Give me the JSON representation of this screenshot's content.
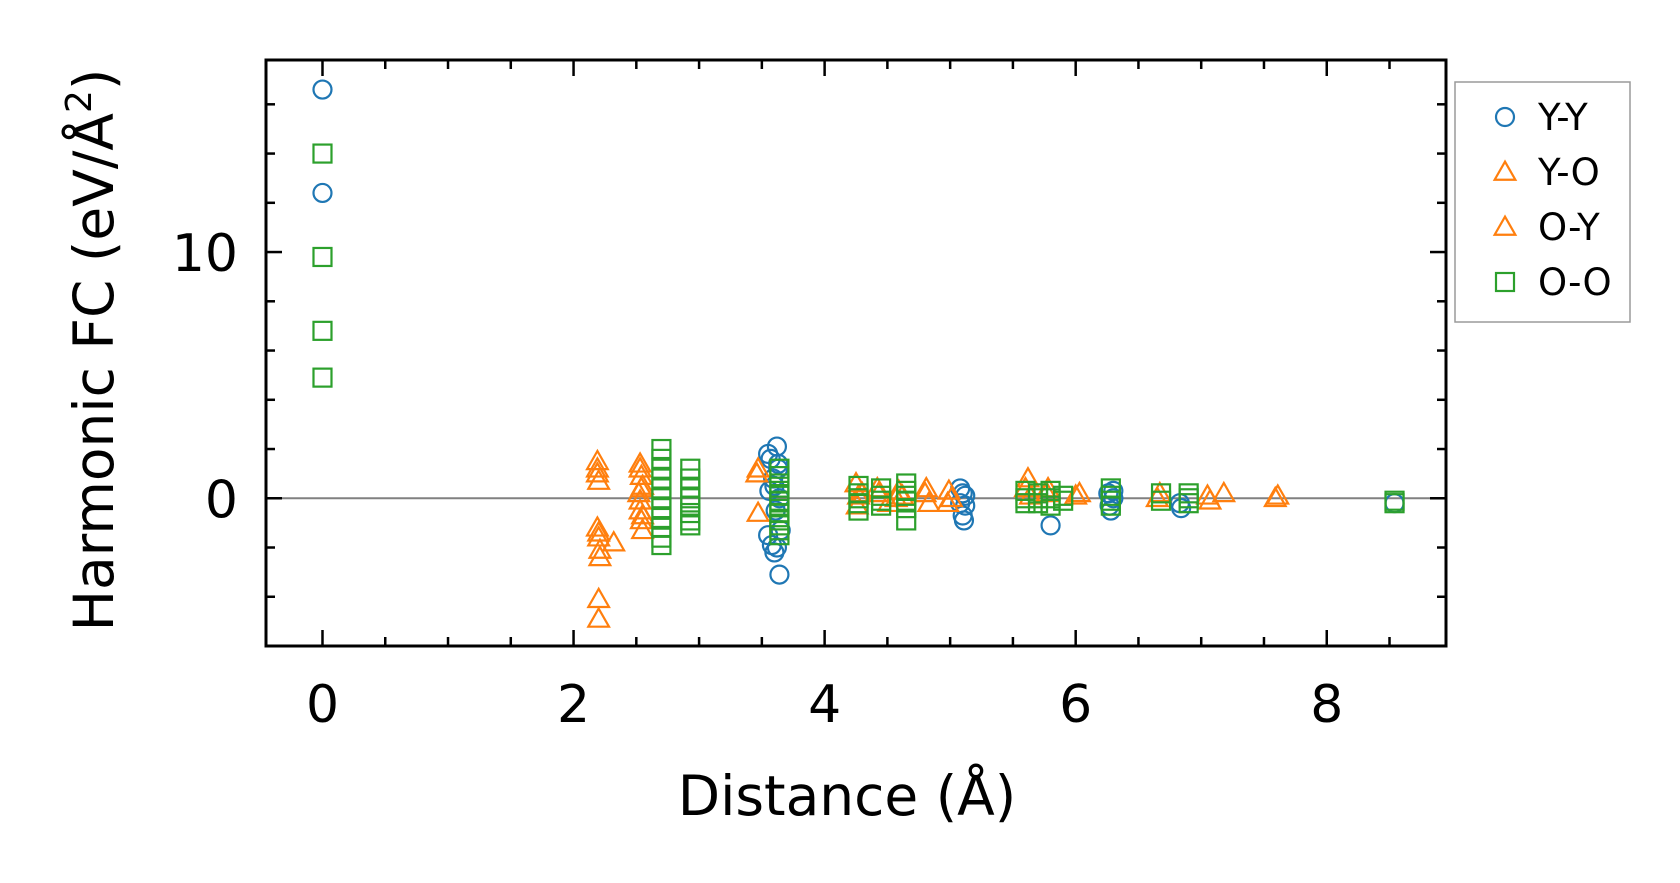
{
  "chart_data": {
    "type": "scatter",
    "title": "",
    "xlabel": "Distance (Å)",
    "ylabel_main": "Harmonic FC (eV/Å",
    "ylabel_sup": "2",
    "ylabel_close": ")",
    "xlim": [
      -0.45,
      8.95
    ],
    "ylim": [
      -6.0,
      17.8
    ],
    "xticks": [
      0,
      2,
      4,
      6,
      8
    ],
    "xtick_labels": [
      "0",
      "2",
      "4",
      "6",
      "8"
    ],
    "yticks": [
      0,
      10
    ],
    "ytick_labels": [
      "0",
      "10"
    ],
    "x_minor_step": 0.5,
    "y_minor_step": 2,
    "zero_line": true,
    "legend_position": "right",
    "series": [
      {
        "name": "Y-Y",
        "marker": "circle",
        "color": "#1f77b4",
        "x": [
          0,
          0,
          3.55,
          3.55,
          3.56,
          3.57,
          3.58,
          3.59,
          3.6,
          3.61,
          3.62,
          3.63,
          3.64,
          3.64,
          3.65,
          3.62,
          3.6,
          3.63,
          5.08,
          5.08,
          5.1,
          5.1,
          5.11,
          5.12,
          5.12,
          5.8,
          6.26,
          6.27,
          6.28,
          6.3,
          6.3,
          6.83,
          6.84,
          8.54
        ],
        "y": [
          16.6,
          12.4,
          1.8,
          -1.5,
          0.3,
          1.6,
          -1.9,
          0.8,
          -2.2,
          -0.5,
          2.1,
          1.2,
          -3.1,
          0.0,
          -1.3,
          -2.0,
          0.5,
          1.4,
          0.4,
          -0.2,
          -0.7,
          0.2,
          -0.9,
          0.1,
          -0.3,
          -1.1,
          0.2,
          -0.3,
          -0.5,
          0.0,
          0.3,
          -0.2,
          -0.4,
          -0.2
        ]
      },
      {
        "name": "Y-O",
        "marker": "triangle",
        "color": "#ff7f0e",
        "x": [
          2.19,
          2.19,
          2.2,
          2.19,
          2.2,
          2.21,
          2.2,
          2.2,
          2.32,
          2.53,
          2.54,
          2.55,
          2.53,
          2.54,
          2.55,
          2.52,
          2.53,
          3.47,
          3.47,
          4.25,
          4.26,
          4.3,
          4.42,
          4.51,
          4.59,
          4.62,
          4.81,
          4.83,
          4.99,
          5.01,
          5.62,
          5.64,
          5.78,
          6.03,
          6.67,
          7.05,
          7.18,
          7.61
        ],
        "y": [
          1.5,
          1.0,
          0.7,
          -1.2,
          -1.6,
          -2.1,
          -4.1,
          -4.9,
          -1.8,
          1.2,
          0.9,
          0.5,
          -0.5,
          -0.9,
          -1.3,
          0.2,
          -0.1,
          1.2,
          -0.6,
          0.6,
          -0.3,
          0.2,
          0.4,
          -0.2,
          0.3,
          0.1,
          0.4,
          -0.2,
          0.3,
          0.0,
          0.8,
          0.1,
          0.4,
          0.2,
          0.2,
          0.1,
          0.2,
          0.1
        ]
      },
      {
        "name": "O-Y",
        "marker": "triangle",
        "color": "#ff7f0e",
        "x": [
          2.19,
          2.2,
          2.21,
          2.53,
          2.55,
          2.54,
          3.46,
          4.27,
          4.43,
          4.57,
          4.8,
          4.98,
          5.6,
          5.77,
          6.0,
          6.65,
          7.07,
          7.59
        ],
        "y": [
          1.2,
          -1.4,
          -2.4,
          1.4,
          -0.7,
          0.4,
          1.0,
          0.1,
          0.2,
          0.0,
          0.2,
          -0.2,
          0.4,
          0.2,
          0.1,
          0.0,
          -0.1,
          0.0
        ]
      },
      {
        "name": "O-O",
        "marker": "square",
        "color": "#2ca02c",
        "x": [
          0,
          0,
          0,
          0,
          2.7,
          2.7,
          2.7,
          2.7,
          2.7,
          2.7,
          2.7,
          2.7,
          2.7,
          2.7,
          2.7,
          2.93,
          2.93,
          2.93,
          2.93,
          2.93,
          2.93,
          2.93,
          2.93,
          3.64,
          3.64,
          3.64,
          3.64,
          3.64,
          3.64,
          3.64,
          3.64,
          3.64,
          3.64,
          3.64,
          3.64,
          4.27,
          4.27,
          4.27,
          4.27,
          4.27,
          4.45,
          4.45,
          4.45,
          4.45,
          4.65,
          4.65,
          4.65,
          4.65,
          4.65,
          4.65,
          5.6,
          5.6,
          5.6,
          5.7,
          5.7,
          5.7,
          5.8,
          5.8,
          5.8,
          5.9,
          5.9,
          6.28,
          6.28,
          6.28,
          6.28,
          6.68,
          6.68,
          6.9,
          6.9,
          6.9,
          8.54,
          8.54
        ],
        "y": [
          14.0,
          9.8,
          6.8,
          4.9,
          2.0,
          1.6,
          1.2,
          0.8,
          0.4,
          0.0,
          -0.4,
          -0.8,
          -1.2,
          -1.6,
          -1.9,
          1.2,
          0.8,
          0.4,
          0.0,
          -0.3,
          -0.6,
          -0.9,
          -1.1,
          1.2,
          0.9,
          0.6,
          0.3,
          0.1,
          -0.1,
          -0.3,
          -0.6,
          -0.9,
          -1.1,
          -1.3,
          -1.5,
          0.5,
          0.2,
          0.0,
          -0.2,
          -0.5,
          0.4,
          0.1,
          -0.1,
          -0.3,
          0.6,
          0.3,
          0.1,
          -0.1,
          -0.4,
          -0.9,
          0.3,
          0.0,
          -0.2,
          0.2,
          0.0,
          -0.2,
          0.3,
          0.0,
          -0.3,
          0.1,
          -0.1,
          0.4,
          0.1,
          -0.1,
          -0.3,
          0.2,
          -0.1,
          0.2,
          0.0,
          -0.2,
          -0.1,
          -0.2
        ]
      }
    ]
  }
}
